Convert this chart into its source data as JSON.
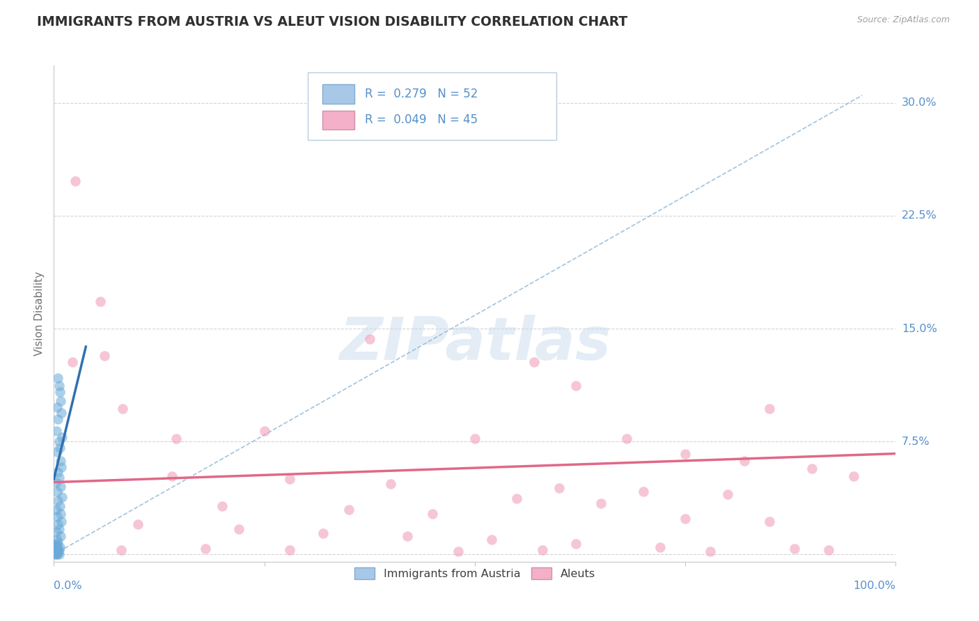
{
  "title": "IMMIGRANTS FROM AUSTRIA VS ALEUT VISION DISABILITY CORRELATION CHART",
  "source": "Source: ZipAtlas.com",
  "ylabel": "Vision Disability",
  "yticks": [
    0.0,
    0.075,
    0.15,
    0.225,
    0.3
  ],
  "ytick_labels": [
    "",
    "7.5%",
    "15.0%",
    "22.5%",
    "30.0%"
  ],
  "xlim": [
    0.0,
    1.0
  ],
  "ylim": [
    -0.005,
    0.325
  ],
  "legend_r1": "R =  0.279   N = 52",
  "legend_r2": "R =  0.049   N = 45",
  "legend_color1": "#a8c8e8",
  "legend_color2": "#f4b0c8",
  "watermark": "ZIPatlas",
  "blue_color": "#6aaad8",
  "pink_color": "#f0a0bc",
  "blue_line_color": "#3070b0",
  "pink_line_color": "#e06888",
  "blue_dash_color": "#90b8d8",
  "title_color": "#303030",
  "axis_label_color": "#5590cc",
  "tick_label_color": "#5590cc",
  "grid_color": "#c8c8cc",
  "blue_scatter": [
    [
      0.005,
      0.117
    ],
    [
      0.007,
      0.108
    ],
    [
      0.006,
      0.112
    ],
    [
      0.004,
      0.098
    ],
    [
      0.008,
      0.102
    ],
    [
      0.005,
      0.09
    ],
    [
      0.009,
      0.094
    ],
    [
      0.003,
      0.082
    ],
    [
      0.006,
      0.075
    ],
    [
      0.01,
      0.078
    ],
    [
      0.004,
      0.068
    ],
    [
      0.007,
      0.071
    ],
    [
      0.008,
      0.062
    ],
    [
      0.005,
      0.055
    ],
    [
      0.009,
      0.058
    ],
    [
      0.003,
      0.048
    ],
    [
      0.006,
      0.051
    ],
    [
      0.004,
      0.042
    ],
    [
      0.008,
      0.045
    ],
    [
      0.005,
      0.036
    ],
    [
      0.01,
      0.038
    ],
    [
      0.003,
      0.03
    ],
    [
      0.007,
      0.032
    ],
    [
      0.004,
      0.025
    ],
    [
      0.008,
      0.027
    ],
    [
      0.005,
      0.02
    ],
    [
      0.009,
      0.022
    ],
    [
      0.003,
      0.015
    ],
    [
      0.006,
      0.017
    ],
    [
      0.004,
      0.01
    ],
    [
      0.008,
      0.012
    ],
    [
      0.002,
      0.006
    ],
    [
      0.005,
      0.008
    ],
    [
      0.003,
      0.004
    ],
    [
      0.007,
      0.005
    ],
    [
      0.002,
      0.002
    ],
    [
      0.005,
      0.003
    ],
    [
      0.001,
      0.001
    ],
    [
      0.003,
      0.001
    ],
    [
      0.002,
      0.0
    ],
    [
      0.004,
      0.0
    ],
    [
      0.006,
      0.0
    ],
    [
      0.001,
      0.0
    ],
    [
      0.003,
      0.002
    ],
    [
      0.005,
      0.001
    ],
    [
      0.002,
      0.003
    ],
    [
      0.004,
      0.002
    ],
    [
      0.001,
      0.005
    ],
    [
      0.003,
      0.004
    ],
    [
      0.006,
      0.003
    ],
    [
      0.002,
      0.006
    ],
    [
      0.004,
      0.006
    ]
  ],
  "pink_scatter": [
    [
      0.025,
      0.248
    ],
    [
      0.055,
      0.168
    ],
    [
      0.022,
      0.128
    ],
    [
      0.06,
      0.132
    ],
    [
      0.375,
      0.143
    ],
    [
      0.57,
      0.128
    ],
    [
      0.62,
      0.112
    ],
    [
      0.082,
      0.097
    ],
    [
      0.25,
      0.082
    ],
    [
      0.145,
      0.077
    ],
    [
      0.5,
      0.077
    ],
    [
      0.85,
      0.097
    ],
    [
      0.68,
      0.077
    ],
    [
      0.75,
      0.067
    ],
    [
      0.82,
      0.062
    ],
    [
      0.9,
      0.057
    ],
    [
      0.95,
      0.052
    ],
    [
      0.14,
      0.052
    ],
    [
      0.28,
      0.05
    ],
    [
      0.4,
      0.047
    ],
    [
      0.6,
      0.044
    ],
    [
      0.7,
      0.042
    ],
    [
      0.8,
      0.04
    ],
    [
      0.55,
      0.037
    ],
    [
      0.65,
      0.034
    ],
    [
      0.2,
      0.032
    ],
    [
      0.35,
      0.03
    ],
    [
      0.45,
      0.027
    ],
    [
      0.75,
      0.024
    ],
    [
      0.85,
      0.022
    ],
    [
      0.1,
      0.02
    ],
    [
      0.22,
      0.017
    ],
    [
      0.32,
      0.014
    ],
    [
      0.42,
      0.012
    ],
    [
      0.52,
      0.01
    ],
    [
      0.62,
      0.007
    ],
    [
      0.72,
      0.005
    ],
    [
      0.92,
      0.003
    ],
    [
      0.08,
      0.003
    ],
    [
      0.18,
      0.004
    ],
    [
      0.28,
      0.003
    ],
    [
      0.48,
      0.002
    ],
    [
      0.58,
      0.003
    ],
    [
      0.78,
      0.002
    ],
    [
      0.88,
      0.004
    ]
  ],
  "blue_dash_line": [
    [
      0.0,
      0.0
    ],
    [
      0.96,
      0.305
    ]
  ],
  "blue_solid_line": [
    [
      0.0,
      0.05
    ],
    [
      0.038,
      0.138
    ]
  ],
  "pink_solid_line": [
    [
      0.0,
      0.048
    ],
    [
      1.0,
      0.067
    ]
  ]
}
